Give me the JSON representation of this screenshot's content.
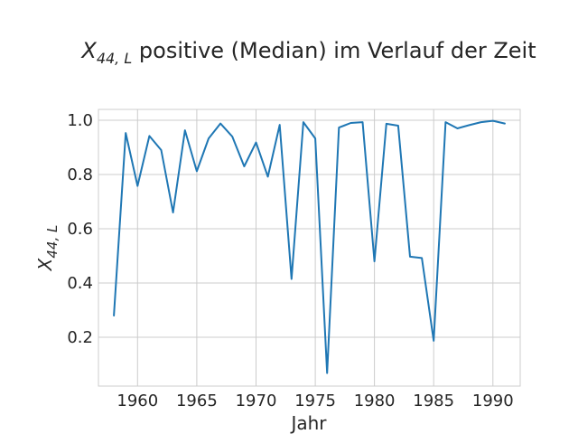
{
  "chart_data": {
    "type": "line",
    "title": {
      "symbol": "X",
      "subscript": "44, L",
      "rest": " positive (Median) im Verlauf der Zeit"
    },
    "xlabel": "Jahr",
    "ylabel": {
      "symbol": "X",
      "subscript": "44, L"
    },
    "xlim": [
      1956.7,
      1992.3
    ],
    "ylim": [
      0.02,
      1.04
    ],
    "x_ticks": [
      1960,
      1965,
      1970,
      1975,
      1980,
      1985,
      1990
    ],
    "y_ticks": [
      0.2,
      0.4,
      0.6,
      0.8,
      1.0
    ],
    "y_tick_labels": [
      "0.2",
      "0.4",
      "0.6",
      "0.8",
      "1.0"
    ],
    "grid": true,
    "series": [
      {
        "color": "#1f77b4",
        "x": [
          1958,
          1959,
          1960,
          1961,
          1962,
          1963,
          1964,
          1965,
          1966,
          1967,
          1968,
          1969,
          1970,
          1971,
          1972,
          1973,
          1974,
          1975,
          1976,
          1977,
          1978,
          1979,
          1980,
          1981,
          1982,
          1983,
          1984,
          1985,
          1986,
          1987,
          1988,
          1989,
          1990,
          1991
        ],
        "y": [
          0.28,
          0.953,
          0.758,
          0.942,
          0.89,
          0.66,
          0.963,
          0.812,
          0.933,
          0.988,
          0.94,
          0.83,
          0.918,
          0.792,
          0.983,
          0.415,
          0.993,
          0.933,
          0.068,
          0.973,
          0.99,
          0.993,
          0.48,
          0.987,
          0.98,
          0.497,
          0.492,
          0.187,
          0.993,
          0.97,
          0.982,
          0.993,
          0.998,
          0.988
        ]
      }
    ]
  }
}
